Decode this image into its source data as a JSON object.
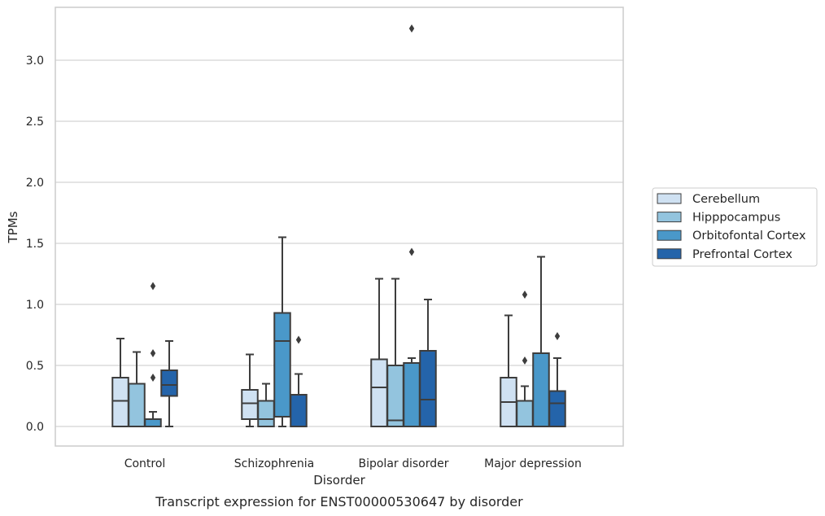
{
  "chart_data": {
    "type": "box",
    "caption": "Transcript expression for ENST00000530647 by disorder",
    "xlabel": "Disorder",
    "ylabel": "TPMs",
    "ylim": [
      -0.16,
      3.43
    ],
    "yticks": [
      0.0,
      0.5,
      1.0,
      1.5,
      2.0,
      2.5,
      3.0
    ],
    "ytick_labels": [
      "0.0",
      "0.5",
      "1.0",
      "1.5",
      "2.0",
      "2.5",
      "3.0"
    ],
    "grid": "horizontal",
    "legend_placement": "right-outside",
    "categories": [
      "Control",
      "Schizophrenia",
      "Bipolar disorder",
      "Major depression"
    ],
    "series": [
      {
        "name": "Cerebellum",
        "color": "#cfe1f2",
        "boxes": [
          {
            "whislo": 0.0,
            "q1": 0.0,
            "med": 0.21,
            "q3": 0.4,
            "whishi": 0.72,
            "fliers": []
          },
          {
            "whislo": 0.0,
            "q1": 0.06,
            "med": 0.19,
            "q3": 0.3,
            "whishi": 0.59,
            "fliers": []
          },
          {
            "whislo": 0.0,
            "q1": 0.0,
            "med": 0.32,
            "q3": 0.55,
            "whishi": 1.21,
            "fliers": []
          },
          {
            "whislo": 0.0,
            "q1": 0.0,
            "med": 0.2,
            "q3": 0.4,
            "whishi": 0.91,
            "fliers": []
          }
        ]
      },
      {
        "name": "Hipppocampus",
        "color": "#93c4de",
        "boxes": [
          {
            "whislo": 0.0,
            "q1": 0.0,
            "med": 0.0,
            "q3": 0.35,
            "whishi": 0.61,
            "fliers": []
          },
          {
            "whislo": 0.0,
            "q1": 0.0,
            "med": 0.06,
            "q3": 0.21,
            "whishi": 0.35,
            "fliers": []
          },
          {
            "whislo": 0.0,
            "q1": 0.0,
            "med": 0.05,
            "q3": 0.5,
            "whishi": 1.21,
            "fliers": []
          },
          {
            "whislo": 0.0,
            "q1": 0.0,
            "med": 0.0,
            "q3": 0.21,
            "whishi": 0.33,
            "fliers": [
              0.54,
              1.08
            ]
          }
        ]
      },
      {
        "name": "Orbitofontal Cortex",
        "color": "#4a98c9",
        "boxes": [
          {
            "whislo": 0.0,
            "q1": 0.0,
            "med": 0.0,
            "q3": 0.06,
            "whishi": 0.12,
            "fliers": [
              0.4,
              0.6,
              1.15
            ]
          },
          {
            "whislo": 0.0,
            "q1": 0.08,
            "med": 0.7,
            "q3": 0.93,
            "whishi": 1.55,
            "fliers": []
          },
          {
            "whislo": 0.0,
            "q1": 0.0,
            "med": 0.0,
            "q3": 0.52,
            "whishi": 0.56,
            "fliers": [
              1.43,
              3.26
            ]
          },
          {
            "whislo": 0.0,
            "q1": 0.0,
            "med": 0.0,
            "q3": 0.6,
            "whishi": 1.39,
            "fliers": []
          }
        ]
      },
      {
        "name": "Prefrontal Cortex",
        "color": "#2464aa",
        "boxes": [
          {
            "whislo": 0.0,
            "q1": 0.25,
            "med": 0.34,
            "q3": 0.46,
            "whishi": 0.7,
            "fliers": []
          },
          {
            "whislo": 0.0,
            "q1": 0.0,
            "med": 0.0,
            "q3": 0.26,
            "whishi": 0.43,
            "fliers": [
              0.71
            ]
          },
          {
            "whislo": 0.0,
            "q1": 0.0,
            "med": 0.22,
            "q3": 0.62,
            "whishi": 1.04,
            "fliers": []
          },
          {
            "whislo": 0.0,
            "q1": 0.0,
            "med": 0.19,
            "q3": 0.29,
            "whishi": 0.56,
            "fliers": [
              0.74
            ]
          }
        ]
      }
    ]
  }
}
